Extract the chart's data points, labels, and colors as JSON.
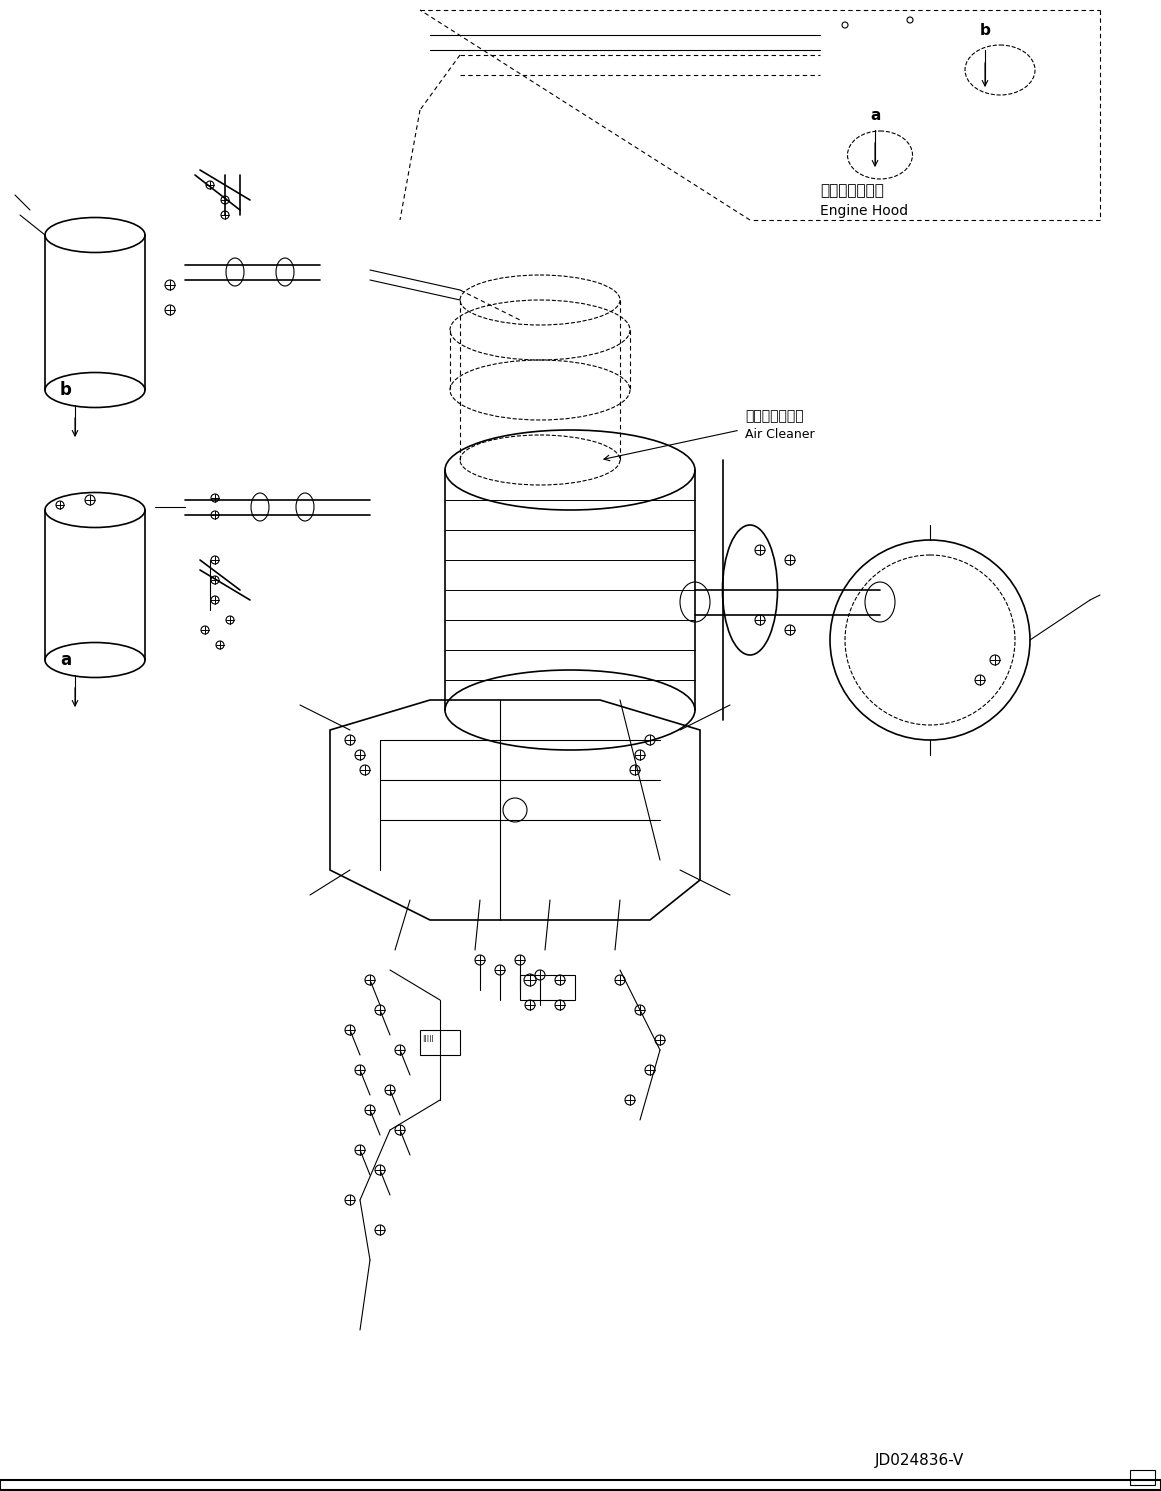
{
  "title": "",
  "background_color": "#ffffff",
  "line_color": "#000000",
  "diagram_code": "JD024836-V",
  "label_engine_hood_jp": "エンジンフード",
  "label_engine_hood_en": "Engine Hood",
  "label_air_cleaner_jp": "エアークリーナ",
  "label_air_cleaner_en": "Air Cleaner",
  "figsize": [
    11.61,
    14.91
  ],
  "dpi": 100
}
